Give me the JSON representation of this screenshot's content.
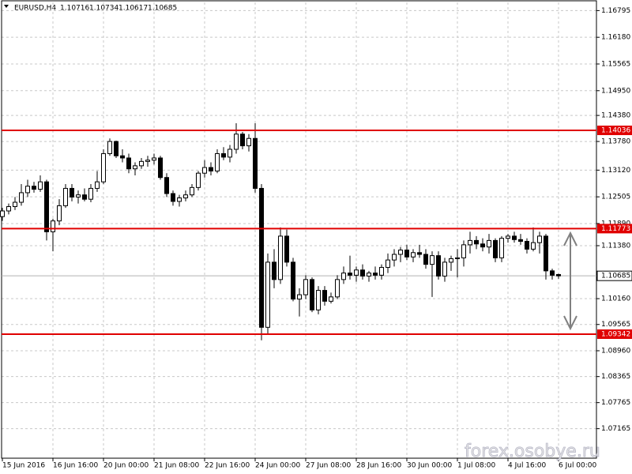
{
  "chart_data": {
    "type": "candlestick",
    "symbol": "EURUSD,H4",
    "watermark": "forex.osobye.ru",
    "categories": [
      "15 Jun 2016",
      null,
      null,
      null,
      null,
      null,
      null,
      null,
      "16 Jun 16:00",
      null,
      null,
      null,
      null,
      null,
      null,
      null,
      "20 Jun 00:00",
      null,
      null,
      null,
      null,
      null,
      null,
      null,
      "21 Jun 08:00",
      null,
      null,
      null,
      null,
      null,
      null,
      null,
      "22 Jun 16:00",
      null,
      null,
      null,
      null,
      null,
      null,
      null,
      "24 Jun 00:00",
      null,
      null,
      null,
      null,
      null,
      null,
      null,
      "27 Jun 08:00",
      null,
      null,
      null,
      null,
      null,
      null,
      null,
      "28 Jun 16:00",
      null,
      null,
      null,
      null,
      null,
      null,
      null,
      "30 Jun 00:00",
      null,
      null,
      null,
      null,
      null,
      null,
      null,
      "1 Jul 08:00",
      null,
      null,
      null,
      null,
      null,
      null,
      null,
      "4 Jul 16:00",
      null,
      null,
      null,
      null,
      null,
      null,
      null,
      "6 Jul 00:00"
    ],
    "open": [
      1.1205,
      1.1218,
      1.1228,
      1.1238,
      1.126,
      1.1275,
      1.1268,
      1.1285,
      1.117,
      1.1195,
      1.123,
      1.127,
      1.125,
      1.1255,
      1.1245,
      1.127,
      1.1285,
      1.135,
      1.1378,
      1.1345,
      1.134,
      1.1315,
      1.1322,
      1.1332,
      1.1335,
      1.134,
      1.1295,
      1.1258,
      1.124,
      1.1248,
      1.1255,
      1.1272,
      1.1305,
      1.1318,
      1.131,
      1.135,
      1.1342,
      1.136,
      1.1395,
      1.1368,
      1.1385,
      1.127,
      1.095,
      1.11,
      1.106,
      1.116,
      1.11,
      1.1015,
      1.1025,
      1.106,
      1.099,
      1.1035,
      1.101,
      1.102,
      1.106,
      1.1075,
      1.107,
      1.1082,
      1.1068,
      1.1075,
      1.107,
      1.1088,
      1.1105,
      1.1118,
      1.1128,
      1.1112,
      1.1122,
      1.1118,
      1.1095,
      1.1115,
      1.1068,
      1.11,
      1.1108,
      1.111,
      1.114,
      1.115,
      1.1142,
      1.1135,
      1.115,
      1.111,
      1.1155,
      1.116,
      1.1152,
      1.1148,
      1.113,
      1.1145,
      1.116,
      1.108,
      1.10716
    ],
    "high": [
      1.1225,
      1.1235,
      1.125,
      1.128,
      1.129,
      1.1285,
      1.13,
      1.129,
      1.12,
      1.1245,
      1.128,
      1.128,
      1.1265,
      1.127,
      1.128,
      1.131,
      1.136,
      1.1385,
      1.138,
      1.136,
      1.135,
      1.133,
      1.134,
      1.1345,
      1.135,
      1.1345,
      1.1305,
      1.1265,
      1.1255,
      1.1265,
      1.128,
      1.131,
      1.1335,
      1.133,
      1.136,
      1.1365,
      1.137,
      1.142,
      1.14,
      1.1395,
      1.142,
      1.128,
      1.112,
      1.113,
      1.118,
      1.1175,
      1.111,
      1.104,
      1.107,
      1.1065,
      1.1045,
      1.1045,
      1.103,
      1.107,
      1.109,
      1.1115,
      1.109,
      1.1095,
      1.108,
      1.109,
      1.1095,
      1.112,
      1.113,
      1.1135,
      1.114,
      1.113,
      1.114,
      1.113,
      1.1125,
      1.1125,
      1.111,
      1.1115,
      1.113,
      1.115,
      1.117,
      1.116,
      1.1155,
      1.1165,
      1.1155,
      1.116,
      1.1165,
      1.117,
      1.1165,
      1.1155,
      1.118,
      1.117,
      1.1165,
      1.1085,
      1.10734
    ],
    "low": [
      1.1195,
      1.121,
      1.122,
      1.123,
      1.125,
      1.126,
      1.1262,
      1.115,
      1.1125,
      1.1185,
      1.1225,
      1.124,
      1.1235,
      1.124,
      1.1238,
      1.1262,
      1.128,
      1.1345,
      1.134,
      1.133,
      1.1305,
      1.13,
      1.1315,
      1.132,
      1.1325,
      1.129,
      1.125,
      1.123,
      1.1228,
      1.124,
      1.125,
      1.1265,
      1.1295,
      1.13,
      1.1305,
      1.1335,
      1.133,
      1.135,
      1.136,
      1.1355,
      1.126,
      1.092,
      1.0935,
      1.104,
      1.105,
      1.109,
      1.101,
      1.0975,
      1.1015,
      1.0985,
      1.098,
      1.1,
      1.1005,
      1.1015,
      1.105,
      1.106,
      1.1055,
      1.106,
      1.1055,
      1.106,
      1.106,
      1.1075,
      1.109,
      1.11,
      1.1105,
      1.11,
      1.111,
      1.1085,
      1.102,
      1.106,
      1.1055,
      1.108,
      1.1065,
      1.109,
      1.112,
      1.113,
      1.1125,
      1.112,
      1.11,
      1.11,
      1.1145,
      1.1145,
      1.114,
      1.112,
      1.1125,
      1.112,
      1.106,
      1.106,
      1.10617
    ],
    "close": [
      1.1218,
      1.1228,
      1.1238,
      1.126,
      1.1275,
      1.1268,
      1.1285,
      1.117,
      1.1195,
      1.123,
      1.127,
      1.125,
      1.1255,
      1.1245,
      1.127,
      1.1285,
      1.135,
      1.1378,
      1.1345,
      1.134,
      1.1315,
      1.1322,
      1.1332,
      1.1335,
      1.134,
      1.1295,
      1.1258,
      1.124,
      1.1248,
      1.1255,
      1.1272,
      1.1305,
      1.1318,
      1.131,
      1.135,
      1.1342,
      1.136,
      1.1395,
      1.1368,
      1.1385,
      1.127,
      1.095,
      1.11,
      1.106,
      1.116,
      1.11,
      1.1015,
      1.1025,
      1.106,
      1.099,
      1.1035,
      1.101,
      1.102,
      1.106,
      1.1075,
      1.107,
      1.1082,
      1.1068,
      1.1075,
      1.107,
      1.1088,
      1.1105,
      1.1118,
      1.1128,
      1.1112,
      1.1122,
      1.1118,
      1.1095,
      1.1115,
      1.1068,
      1.11,
      1.1108,
      1.111,
      1.114,
      1.115,
      1.1142,
      1.1135,
      1.115,
      1.111,
      1.1155,
      1.116,
      1.1152,
      1.1148,
      1.113,
      1.1145,
      1.116,
      1.108,
      1.107,
      1.10685
    ],
    "levels": [
      1.14036,
      1.11773,
      1.09342
    ],
    "level_color": "#e00000",
    "ylim": [
      1.06485,
      1.16984
    ],
    "yticks": [
      1.16795,
      {
        "value": 1.1618,
        "label": "1.16180"
      },
      1.15565,
      {
        "value": 1.1495,
        "label": "1.14950"
      },
      {
        "value": 1.1438,
        "label": "1.14380"
      },
      {
        "value": 1.1378,
        "label": "1.13780"
      },
      {
        "value": 1.1312,
        "label": "1.13120"
      },
      1.12505,
      {
        "value": 1.1189,
        "label": "1.11890"
      },
      {
        "value": 1.1138,
        "label": "1.11380"
      },
      {
        "value": 1.1016,
        "label": "1.10160"
      },
      1.09565,
      {
        "value": 1.0896,
        "label": "1.08960"
      },
      1.08365,
      1.07765,
      1.07165
    ],
    "grid": true
  }
}
